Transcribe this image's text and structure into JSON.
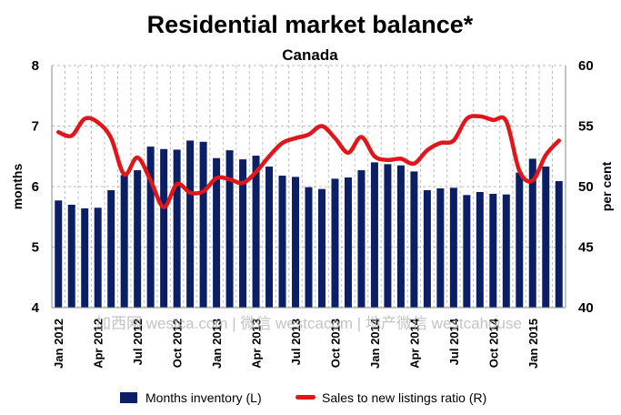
{
  "chart_data": {
    "type": "bar+line",
    "title": "Residential market balance*",
    "subtitle": "Canada",
    "ylabel_left": "months",
    "ylabel_right": "per cent",
    "ylim_left": [
      4,
      8
    ],
    "ylim_right": [
      40,
      60
    ],
    "yticks_left": [
      "4",
      "5",
      "6",
      "7",
      "8"
    ],
    "yticks_right": [
      "40",
      "45",
      "50",
      "55",
      "60"
    ],
    "grid": true,
    "legend_position": "bottom",
    "x_tick_labels": [
      "Jan 2012",
      "Apr 2012",
      "Jul 2012",
      "Oct 2012",
      "Jan 2013",
      "Apr 2013",
      "Jul 2013",
      "Oct 2013",
      "Jan 2014",
      "Apr 2014",
      "Jul 2014",
      "Oct 2014",
      "Jan 2015"
    ],
    "x_start": "Jan 2012",
    "x_end": "Mar 2015",
    "series": [
      {
        "name": "Months inventory (L)",
        "type": "bar",
        "axis": "left",
        "color": "#0b1f66",
        "values": [
          5.77,
          5.7,
          5.64,
          5.65,
          5.94,
          6.19,
          6.27,
          6.66,
          6.62,
          6.61,
          6.76,
          6.74,
          6.47,
          6.6,
          6.45,
          6.51,
          6.33,
          6.18,
          6.16,
          5.99,
          5.96,
          6.13,
          6.15,
          6.27,
          6.4,
          6.37,
          6.35,
          6.25,
          5.94,
          5.97,
          5.98,
          5.86,
          5.91,
          5.88,
          5.87,
          6.23,
          6.46,
          6.33,
          6.09
        ]
      },
      {
        "name": "Sales to new listings ratio (R)",
        "type": "line",
        "axis": "right",
        "color": "#e0161b",
        "values": [
          54.5,
          54.2,
          55.6,
          55.3,
          54.0,
          51.0,
          52.4,
          50.5,
          48.3,
          50.2,
          49.5,
          49.6,
          50.7,
          50.6,
          50.3,
          51.2,
          52.5,
          53.6,
          54.0,
          54.3,
          55.0,
          54.0,
          52.8,
          54.1,
          52.5,
          52.2,
          52.3,
          51.9,
          53.0,
          53.6,
          53.8,
          55.6,
          55.8,
          55.5,
          55.4,
          51.3,
          50.5,
          52.6,
          53.8
        ]
      }
    ]
  },
  "watermark": "加西网 westca.com | 微信 westcacom | 地产微信 westcahouse"
}
